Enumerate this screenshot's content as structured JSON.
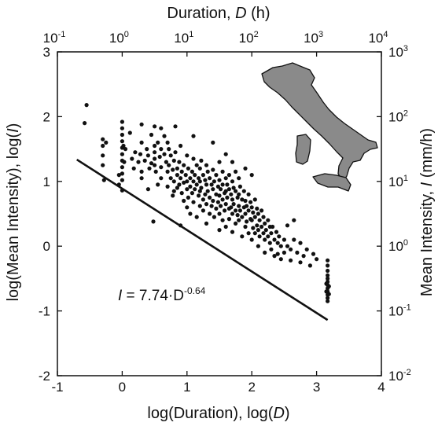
{
  "chart_data": {
    "type": "scatter",
    "title": "",
    "xlabel": {
      "text": "log(Duration), log(",
      "var": "D",
      "close": ")"
    },
    "ylabel": {
      "text": "log(Mean Intensity), log(",
      "var": "I",
      "close": ")"
    },
    "x2label": {
      "text": "Duration, ",
      "var": "D",
      "unit": " (h)"
    },
    "y2label": {
      "text": "Mean Intensity, ",
      "var": "I",
      "unit": " (mm/h)"
    },
    "xlim": [
      -1,
      4
    ],
    "ylim": [
      -2,
      3
    ],
    "xticks": [
      -1,
      0,
      1,
      2,
      3,
      4
    ],
    "yticks": [
      -2,
      -1,
      0,
      1,
      2,
      3
    ],
    "xtick_labels": [
      "-1",
      "0",
      "1",
      "2",
      "3",
      "4"
    ],
    "ytick_labels": [
      "-2",
      "-1",
      "0",
      "1",
      "2",
      "3"
    ],
    "x2tick_labels": [
      {
        "base": "10",
        "exp": "-1"
      },
      {
        "base": "10",
        "exp": "0"
      },
      {
        "base": "10",
        "exp": "1"
      },
      {
        "base": "10",
        "exp": "2"
      },
      {
        "base": "10",
        "exp": "3"
      },
      {
        "base": "10",
        "exp": "4"
      }
    ],
    "y2tick_labels": [
      {
        "base": "10",
        "exp": "-2"
      },
      {
        "base": "10",
        "exp": "-1"
      },
      {
        "base": "10",
        "exp": "0"
      },
      {
        "base": "10",
        "exp": "1"
      },
      {
        "base": "10",
        "exp": "2"
      },
      {
        "base": "10",
        "exp": "3"
      }
    ],
    "grid": false,
    "threshold": {
      "label_var": "I",
      "label_rest": " = 7.74·D",
      "label_exp": "-0.64",
      "alpha": 7.74,
      "beta": -0.64,
      "x_range": [
        -0.7,
        3.17
      ]
    },
    "inset_map": "italy-map",
    "series": [
      {
        "points": [
          [
            -0.55,
            2.18
          ],
          [
            -0.58,
            1.9
          ],
          [
            -0.3,
            1.65
          ],
          [
            -0.3,
            1.55
          ],
          [
            -0.3,
            1.4
          ],
          [
            -0.3,
            1.25
          ],
          [
            -0.25,
            1.6
          ],
          [
            -0.28,
            1.02
          ],
          [
            -0.05,
            1.1
          ],
          [
            -0.05,
            0.95
          ],
          [
            0,
            1.92
          ],
          [
            0,
            1.82
          ],
          [
            0,
            1.72
          ],
          [
            0,
            1.62
          ],
          [
            0,
            1.52
          ],
          [
            0,
            1.42
          ],
          [
            0,
            1.32
          ],
          [
            0,
            1.22
          ],
          [
            0,
            1.12
          ],
          [
            0,
            1.02
          ],
          [
            0,
            0.86
          ],
          [
            0.02,
            1.55
          ],
          [
            0.03,
            1.3
          ],
          [
            0.05,
            1.5
          ],
          [
            0.12,
            1.75
          ],
          [
            0.15,
            1.35
          ],
          [
            0.18,
            1.2
          ],
          [
            0.2,
            1.45
          ],
          [
            0.25,
            1.3
          ],
          [
            0.28,
            1.42
          ],
          [
            0.3,
            1.88
          ],
          [
            0.3,
            1.6
          ],
          [
            0.3,
            1.15
          ],
          [
            0.3,
            1.05
          ],
          [
            0.35,
            1.32
          ],
          [
            0.38,
            1.5
          ],
          [
            0.4,
            1.4
          ],
          [
            0.4,
            0.88
          ],
          [
            0.42,
            1.2
          ],
          [
            0.45,
            1.72
          ],
          [
            0.45,
            1.28
          ],
          [
            0.48,
            0.38
          ],
          [
            0.5,
            1.85
          ],
          [
            0.5,
            1.55
          ],
          [
            0.5,
            1.45
          ],
          [
            0.5,
            1.35
          ],
          [
            0.5,
            1.25
          ],
          [
            0.52,
            1.15
          ],
          [
            0.55,
            1.6
          ],
          [
            0.55,
            0.95
          ],
          [
            0.58,
            1.38
          ],
          [
            0.6,
            1.82
          ],
          [
            0.6,
            1.5
          ],
          [
            0.6,
            1.22
          ],
          [
            0.6,
            1.05
          ],
          [
            0.65,
            1.7
          ],
          [
            0.65,
            1.42
          ],
          [
            0.68,
            1.3
          ],
          [
            0.7,
            1.6
          ],
          [
            0.7,
            1.15
          ],
          [
            0.7,
            0.92
          ],
          [
            0.72,
            1.5
          ],
          [
            0.72,
            1.25
          ],
          [
            0.75,
            1.4
          ],
          [
            0.75,
            1.05
          ],
          [
            0.78,
            1.18
          ],
          [
            0.78,
            0.78
          ],
          [
            0.8,
            1.32
          ],
          [
            0.8,
            1.0
          ],
          [
            0.8,
            0.85
          ],
          [
            0.82,
            1.85
          ],
          [
            0.82,
            1.45
          ],
          [
            0.85,
            1.2
          ],
          [
            0.85,
            1.1
          ],
          [
            0.85,
            0.9
          ],
          [
            0.88,
            1.3
          ],
          [
            0.88,
            0.95
          ],
          [
            0.9,
            1.55
          ],
          [
            0.9,
            1.05
          ],
          [
            0.9,
            0.32
          ],
          [
            0.92,
            1.15
          ],
          [
            0.92,
            0.82
          ],
          [
            0.95,
            1.25
          ],
          [
            0.95,
            0.98
          ],
          [
            0.95,
            0.7
          ],
          [
            0.98,
            1.1
          ],
          [
            1.0,
            1.4
          ],
          [
            1.0,
            1.0
          ],
          [
            1.0,
            0.88
          ],
          [
            1.0,
            0.6
          ],
          [
            1.02,
            1.2
          ],
          [
            1.02,
            0.75
          ],
          [
            1.05,
            1.05
          ],
          [
            1.05,
            0.92
          ],
          [
            1.05,
            0.5
          ],
          [
            1.08,
            1.15
          ],
          [
            1.08,
            0.82
          ],
          [
            1.1,
            1.7
          ],
          [
            1.1,
            1.35
          ],
          [
            1.1,
            1.0
          ],
          [
            1.1,
            0.68
          ],
          [
            1.12,
            1.1
          ],
          [
            1.12,
            0.88
          ],
          [
            1.15,
            1.25
          ],
          [
            1.15,
            0.95
          ],
          [
            1.15,
            0.45
          ],
          [
            1.18,
            1.05
          ],
          [
            1.18,
            0.78
          ],
          [
            1.2,
            1.2
          ],
          [
            1.2,
            1.0
          ],
          [
            1.2,
            0.85
          ],
          [
            1.2,
            0.62
          ],
          [
            1.22,
            1.32
          ],
          [
            1.22,
            0.9
          ],
          [
            1.25,
            1.1
          ],
          [
            1.25,
            0.72
          ],
          [
            1.25,
            0.55
          ],
          [
            1.28,
            1.02
          ],
          [
            1.28,
            0.8
          ],
          [
            1.3,
            1.25
          ],
          [
            1.3,
            0.95
          ],
          [
            1.3,
            0.65
          ],
          [
            1.3,
            0.35
          ],
          [
            1.32,
            1.15
          ],
          [
            1.32,
            0.85
          ],
          [
            1.35,
            1.05
          ],
          [
            1.35,
            0.75
          ],
          [
            1.35,
            0.5
          ],
          [
            1.38,
            0.95
          ],
          [
            1.38,
            0.62
          ],
          [
            1.4,
            1.6
          ],
          [
            1.4,
            1.18
          ],
          [
            1.4,
            0.88
          ],
          [
            1.4,
            0.7
          ],
          [
            1.42,
            1.0
          ],
          [
            1.42,
            0.45
          ],
          [
            1.45,
            1.1
          ],
          [
            1.45,
            0.8
          ],
          [
            1.45,
            0.58
          ],
          [
            1.48,
            0.92
          ],
          [
            1.48,
            0.68
          ],
          [
            1.5,
            1.3
          ],
          [
            1.5,
            1.02
          ],
          [
            1.5,
            0.78
          ],
          [
            1.5,
            0.5
          ],
          [
            1.5,
            0.25
          ],
          [
            1.52,
            0.88
          ],
          [
            1.52,
            0.62
          ],
          [
            1.55,
            1.15
          ],
          [
            1.55,
            0.95
          ],
          [
            1.55,
            0.72
          ],
          [
            1.55,
            0.4
          ],
          [
            1.58,
            0.82
          ],
          [
            1.58,
            0.55
          ],
          [
            1.6,
            1.42
          ],
          [
            1.6,
            1.05
          ],
          [
            1.6,
            0.85
          ],
          [
            1.6,
            0.65
          ],
          [
            1.6,
            0.3
          ],
          [
            1.62,
            0.95
          ],
          [
            1.62,
            0.75
          ],
          [
            1.65,
            1.1
          ],
          [
            1.65,
            0.88
          ],
          [
            1.65,
            0.58
          ],
          [
            1.65,
            0.42
          ],
          [
            1.68,
            0.8
          ],
          [
            1.68,
            0.6
          ],
          [
            1.7,
            1.3
          ],
          [
            1.7,
            1.0
          ],
          [
            1.7,
            0.72
          ],
          [
            1.7,
            0.5
          ],
          [
            1.7,
            0.22
          ],
          [
            1.72,
            0.9
          ],
          [
            1.72,
            0.65
          ],
          [
            1.75,
            1.15
          ],
          [
            1.75,
            0.85
          ],
          [
            1.75,
            0.55
          ],
          [
            1.75,
            0.35
          ],
          [
            1.78,
            0.75
          ],
          [
            1.78,
            0.48
          ],
          [
            1.8,
            1.05
          ],
          [
            1.8,
            0.8
          ],
          [
            1.8,
            0.62
          ],
          [
            1.8,
            0.4
          ],
          [
            1.82,
            0.92
          ],
          [
            1.82,
            0.55
          ],
          [
            1.85,
            0.72
          ],
          [
            1.85,
            0.45
          ],
          [
            1.85,
            0.15
          ],
          [
            1.88,
            0.85
          ],
          [
            1.88,
            0.6
          ],
          [
            1.9,
            1.2
          ],
          [
            1.9,
            0.7
          ],
          [
            1.9,
            0.5
          ],
          [
            1.9,
            0.3
          ],
          [
            1.92,
            0.62
          ],
          [
            1.92,
            0.38
          ],
          [
            1.95,
            0.8
          ],
          [
            1.95,
            0.55
          ],
          [
            1.95,
            0.2
          ],
          [
            1.98,
            0.68
          ],
          [
            1.98,
            0.42
          ],
          [
            2.0,
            1.1
          ],
          [
            2.0,
            0.6
          ],
          [
            2.0,
            0.4
          ],
          [
            2.0,
            0.1
          ],
          [
            2.02,
            0.52
          ],
          [
            2.02,
            0.28
          ],
          [
            2.05,
            0.72
          ],
          [
            2.05,
            0.45
          ],
          [
            2.05,
            0.2
          ],
          [
            2.08,
            0.58
          ],
          [
            2.08,
            0.32
          ],
          [
            2.1,
            0.5
          ],
          [
            2.1,
            0.25
          ],
          [
            2.1,
            0.0
          ],
          [
            2.12,
            0.4
          ],
          [
            2.12,
            0.15
          ],
          [
            2.15,
            0.55
          ],
          [
            2.15,
            0.3
          ],
          [
            2.18,
            0.45
          ],
          [
            2.18,
            0.2
          ],
          [
            2.2,
            0.35
          ],
          [
            2.2,
            0.1
          ],
          [
            2.2,
            -0.1
          ],
          [
            2.22,
            0.25
          ],
          [
            2.25,
            0.4
          ],
          [
            2.25,
            0.15
          ],
          [
            2.28,
            0.3
          ],
          [
            2.28,
            0.05
          ],
          [
            2.3,
            0.2
          ],
          [
            2.3,
            -0.05
          ],
          [
            2.32,
            0.3
          ],
          [
            2.35,
            0.1
          ],
          [
            2.35,
            -0.15
          ],
          [
            2.38,
            0.22
          ],
          [
            2.4,
            0.05
          ],
          [
            2.4,
            -0.12
          ],
          [
            2.42,
            0.15
          ],
          [
            2.45,
            0.0
          ],
          [
            2.45,
            -0.2
          ],
          [
            2.5,
            0.1
          ],
          [
            2.5,
            -0.1
          ],
          [
            2.55,
            0.32
          ],
          [
            2.55,
            0.0
          ],
          [
            2.6,
            -0.05
          ],
          [
            2.6,
            -0.22
          ],
          [
            2.65,
            0.4
          ],
          [
            2.65,
            0.1
          ],
          [
            2.7,
            -0.1
          ],
          [
            2.75,
            0.05
          ],
          [
            2.75,
            -0.25
          ],
          [
            2.8,
            -0.15
          ],
          [
            2.85,
            -0.05
          ],
          [
            2.9,
            -0.3
          ],
          [
            2.95,
            -0.12
          ],
          [
            3.0,
            -0.2
          ],
          [
            3.17,
            -0.22
          ],
          [
            3.17,
            -0.3
          ],
          [
            3.17,
            -0.38
          ],
          [
            3.17,
            -0.45
          ],
          [
            3.17,
            -0.5
          ],
          [
            3.17,
            -0.55
          ],
          [
            3.17,
            -0.6
          ],
          [
            3.17,
            -0.65
          ],
          [
            3.17,
            -0.7
          ],
          [
            3.17,
            -0.75
          ],
          [
            3.17,
            -0.8
          ],
          [
            3.17,
            -0.85
          ],
          [
            3.15,
            -0.58
          ],
          [
            3.15,
            -0.7
          ],
          [
            3.19,
            -0.62
          ],
          [
            3.19,
            -0.74
          ]
        ]
      }
    ]
  }
}
